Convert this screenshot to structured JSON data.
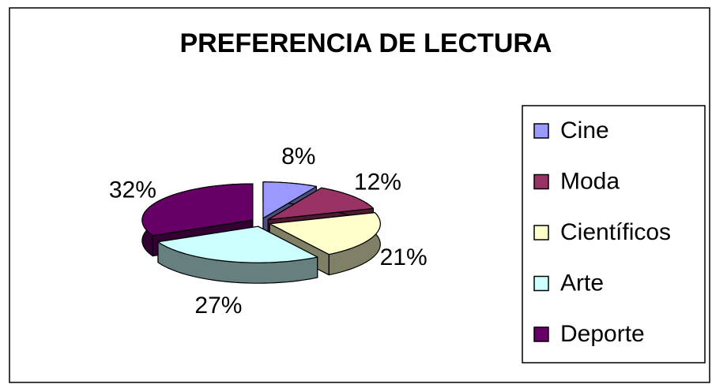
{
  "chart_data": {
    "type": "pie",
    "title": "PREFERENCIA  DE LECTURA",
    "categories": [
      "Cine",
      "Moda",
      "Científicos",
      "Arte",
      "Deporte"
    ],
    "values": [
      8,
      12,
      21,
      27,
      32
    ],
    "value_labels": [
      "8%",
      "12%",
      "21%",
      "27%",
      "32%"
    ],
    "colors": [
      "#9999ff",
      "#993366",
      "#ffffcc",
      "#ccffff",
      "#660066"
    ],
    "legend": "right"
  }
}
